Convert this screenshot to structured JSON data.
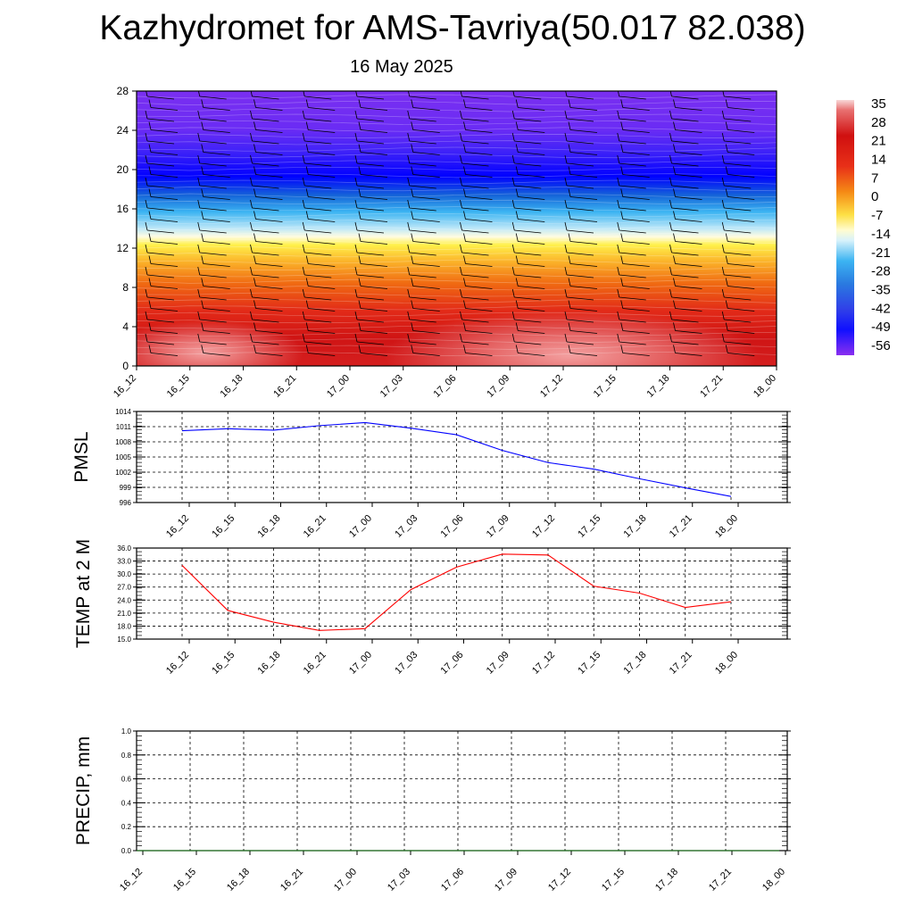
{
  "header": {
    "title": "Kazhydromet for AMS-Tavriya(50.017 82.038)",
    "date": "16 May 2025"
  },
  "chart_data": [
    {
      "type": "heatmap",
      "description_key": "vertical cross-section",
      "x_ticks": [
        "16_12",
        "16_15",
        "16_18",
        "16_21",
        "17_00",
        "17_03",
        "17_06",
        "17_09",
        "17_12",
        "17_15",
        "17_18",
        "17_21",
        "18_00"
      ],
      "y_ticks": [
        "0",
        "4",
        "8",
        "12",
        "16",
        "20",
        "24",
        "28"
      ],
      "ylim": [
        0,
        28
      ],
      "colorbar_labels": [
        "35",
        "28",
        "21",
        "14",
        "7",
        "0",
        "-7",
        "-14",
        "-21",
        "-28",
        "-35",
        "-42",
        "-49",
        "-56"
      ],
      "colorbar_range": [
        -56,
        35
      ],
      "wind_barbs": true
    },
    {
      "type": "line",
      "ylabel": "PMSL",
      "x": [
        "16_12",
        "16_15",
        "16_18",
        "16_21",
        "17_00",
        "17_03",
        "17_06",
        "17_09",
        "17_12",
        "17_15",
        "17_18",
        "17_21",
        "18_00"
      ],
      "values": [
        1010.2,
        1010.6,
        1010.3,
        1011.2,
        1011.8,
        1010.7,
        1009.4,
        1006.3,
        1003.9,
        1002.6,
        1000.7,
        998.9,
        997.2
      ],
      "y_ticks": [
        "1014",
        "1011",
        "1008",
        "1005",
        "1002",
        "999",
        "996"
      ],
      "ylim": [
        996,
        1014
      ],
      "color": "#0000ff",
      "grid": true
    },
    {
      "type": "line",
      "ylabel": "TEMP at 2 M",
      "x": [
        "16_12",
        "16_15",
        "16_18",
        "16_21",
        "17_00",
        "17_03",
        "17_06",
        "17_09",
        "17_12",
        "17_15",
        "17_18",
        "17_21",
        "18_00"
      ],
      "values": [
        32.0,
        21.6,
        18.9,
        17.0,
        17.4,
        26.4,
        31.6,
        34.6,
        34.4,
        27.2,
        25.6,
        22.3,
        23.6
      ],
      "y_ticks": [
        "36.0",
        "33.0",
        "30.0",
        "27.0",
        "24.0",
        "21.0",
        "18.0",
        "15.0"
      ],
      "ylim": [
        15,
        36
      ],
      "color": "#ff0000",
      "grid": true
    },
    {
      "type": "line",
      "ylabel": "PRECIP, mm",
      "x": [
        "16_12",
        "16_15",
        "16_18",
        "16_21",
        "17_00",
        "17_03",
        "17_06",
        "17_09",
        "17_12",
        "17_15",
        "17_18",
        "17_21",
        "18_00"
      ],
      "values": [
        0,
        0,
        0,
        0,
        0,
        0,
        0,
        0,
        0,
        0,
        0,
        0,
        0
      ],
      "y_ticks": [
        "1.0",
        "0.8",
        "0.6",
        "0.4",
        "0.2",
        "0.0"
      ],
      "ylim": [
        0,
        1
      ],
      "color": "#006400",
      "grid": true
    }
  ]
}
